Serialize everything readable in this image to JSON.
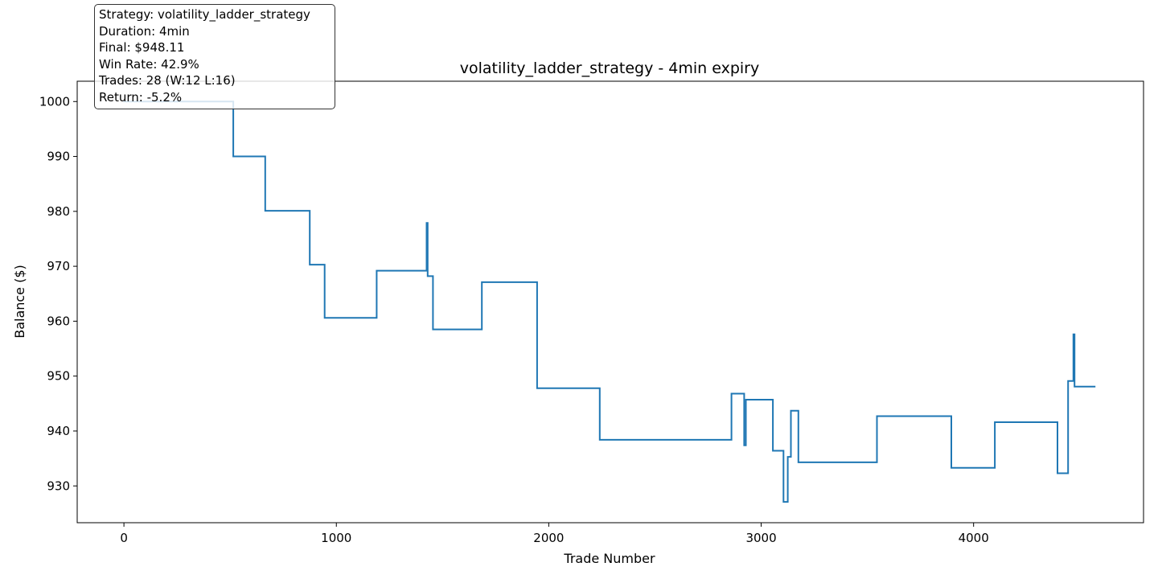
{
  "chart_data": {
    "type": "line",
    "title": "volatility_ladder_strategy - 4min expiry",
    "xlabel": "Trade Number",
    "ylabel": "Balance ($)",
    "xlim": [
      -220,
      4800
    ],
    "ylim": [
      923.3,
      1003.7
    ],
    "xticks": [
      0,
      1000,
      2000,
      3000,
      4000
    ],
    "yticks": [
      930,
      940,
      950,
      960,
      970,
      980,
      990,
      1000
    ],
    "grid": false,
    "step": true,
    "series": [
      {
        "color": "#1f77b4",
        "points": [
          [
            0,
            1000
          ],
          [
            515,
            1000
          ],
          [
            515,
            990.0
          ],
          [
            665,
            990.0
          ],
          [
            665,
            980.1
          ],
          [
            875,
            980.1
          ],
          [
            875,
            970.3
          ],
          [
            945,
            970.3
          ],
          [
            945,
            960.6
          ],
          [
            1190,
            960.6
          ],
          [
            1190,
            969.2
          ],
          [
            1425,
            969.2
          ],
          [
            1425,
            977.9
          ],
          [
            1430,
            977.9
          ],
          [
            1430,
            968.2
          ],
          [
            1455,
            968.2
          ],
          [
            1455,
            958.5
          ],
          [
            1685,
            958.5
          ],
          [
            1685,
            967.1
          ],
          [
            1945,
            967.1
          ],
          [
            1945,
            947.8
          ],
          [
            2240,
            947.8
          ],
          [
            2240,
            938.4
          ],
          [
            2860,
            938.4
          ],
          [
            2860,
            946.8
          ],
          [
            2920,
            946.8
          ],
          [
            2920,
            937.4
          ],
          [
            2928,
            937.4
          ],
          [
            2928,
            945.7
          ],
          [
            3055,
            945.7
          ],
          [
            3055,
            936.4
          ],
          [
            3105,
            936.4
          ],
          [
            3105,
            927.1
          ],
          [
            3125,
            927.1
          ],
          [
            3125,
            935.3
          ],
          [
            3140,
            935.3
          ],
          [
            3140,
            943.7
          ],
          [
            3175,
            943.7
          ],
          [
            3175,
            934.3
          ],
          [
            3545,
            934.3
          ],
          [
            3545,
            942.7
          ],
          [
            3895,
            942.7
          ],
          [
            3895,
            933.3
          ],
          [
            4100,
            933.3
          ],
          [
            4100,
            941.6
          ],
          [
            4395,
            941.6
          ],
          [
            4395,
            932.3
          ],
          [
            4445,
            932.3
          ],
          [
            4445,
            949.1
          ],
          [
            4470,
            949.1
          ],
          [
            4470,
            957.6
          ],
          [
            4475,
            957.6
          ],
          [
            4475,
            948.1
          ],
          [
            4570,
            948.1
          ]
        ]
      }
    ]
  },
  "info_box": {
    "strategy": "Strategy: volatility_ladder_strategy",
    "duration": "Duration: 4min",
    "final": "Final: $948.11",
    "win_rate": "Win Rate: 42.9%",
    "trades": "Trades: 28 (W:12 L:16)",
    "return": "Return: -5.2%"
  }
}
